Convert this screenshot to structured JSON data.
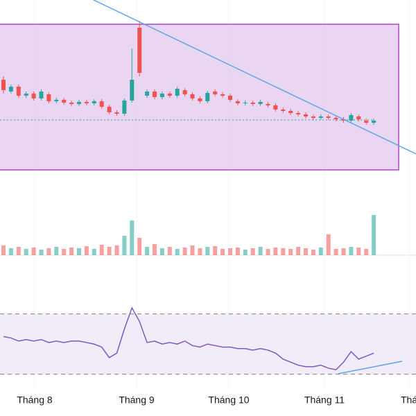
{
  "chart_data": {
    "type": "candlestick",
    "x_labels": [
      "Tháng 8",
      "Tháng 9",
      "Tháng 10",
      "Tháng 11",
      "Thá"
    ],
    "up_color": "#26a69a",
    "down_color": "#ef5350",
    "rsi_color": "#7e57c2",
    "ylim": [
      0,
      250
    ],
    "volume_ylim": [
      0,
      100
    ],
    "rsi_ylim": [
      0,
      100
    ],
    "rsi_levels": [
      30,
      70
    ],
    "open": [
      135,
      118,
      125,
      112,
      115,
      108,
      114,
      104,
      106,
      102,
      100,
      103,
      101,
      104,
      96,
      88,
      86,
      105,
      210,
      112,
      118,
      110,
      115,
      112,
      120,
      114,
      108,
      104,
      118,
      114,
      112,
      104,
      101,
      102,
      100,
      100,
      98,
      92,
      90,
      87,
      85,
      82,
      80,
      82,
      80,
      78,
      76,
      82,
      76,
      73
    ],
    "close": [
      120,
      125,
      112,
      115,
      108,
      118,
      104,
      106,
      102,
      100,
      103,
      101,
      104,
      96,
      88,
      86,
      105,
      135,
      145,
      118,
      110,
      115,
      112,
      122,
      114,
      108,
      104,
      116,
      114,
      112,
      106,
      101,
      102,
      100,
      103,
      98,
      92,
      90,
      87,
      85,
      82,
      80,
      82,
      80,
      78,
      76,
      84,
      78,
      73,
      76
    ],
    "high": [
      140,
      128,
      128,
      118,
      118,
      121,
      117,
      109,
      109,
      105,
      106,
      106,
      107,
      107,
      99,
      91,
      108,
      180,
      220,
      121,
      121,
      118,
      118,
      125,
      123,
      117,
      111,
      119,
      121,
      117,
      115,
      107,
      105,
      105,
      106,
      103,
      101,
      95,
      93,
      90,
      88,
      85,
      85,
      85,
      83,
      81,
      87,
      85,
      79,
      79
    ],
    "low": [
      115,
      115,
      109,
      109,
      105,
      105,
      101,
      101,
      99,
      97,
      97,
      98,
      98,
      93,
      85,
      83,
      83,
      102,
      140,
      109,
      107,
      107,
      109,
      109,
      111,
      105,
      101,
      101,
      111,
      109,
      103,
      98,
      98,
      97,
      97,
      95,
      89,
      87,
      84,
      82,
      79,
      77,
      77,
      77,
      75,
      73,
      73,
      75,
      70,
      70
    ],
    "volume": [
      14,
      10,
      12,
      9,
      11,
      8,
      10,
      12,
      9,
      11,
      10,
      13,
      9,
      15,
      12,
      14,
      28,
      50,
      25,
      12,
      16,
      10,
      12,
      9,
      11,
      14,
      10,
      12,
      13,
      9,
      10,
      11,
      8,
      10,
      12,
      9,
      11,
      10,
      9,
      12,
      10,
      8,
      11,
      30,
      9,
      10,
      12,
      11,
      9,
      58
    ],
    "rsi": [
      55,
      54,
      52,
      53,
      52,
      53,
      51,
      52,
      51,
      52,
      52,
      51,
      50,
      48,
      41,
      44,
      60,
      74,
      65,
      51,
      52,
      50,
      51,
      50,
      52,
      49,
      48,
      50,
      49,
      48,
      48,
      47,
      47,
      46,
      47,
      46,
      44,
      40,
      38,
      36,
      35,
      35,
      36,
      34,
      33,
      38,
      45,
      40,
      42,
      44
    ]
  }
}
